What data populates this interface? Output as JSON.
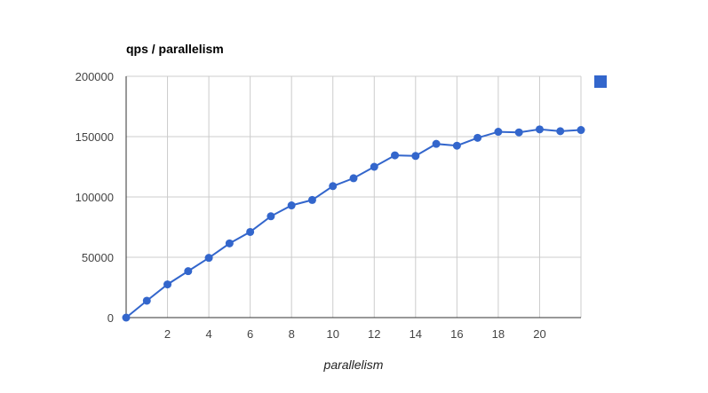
{
  "chart_data": {
    "type": "line",
    "title": "qps / parallelism",
    "xlabel": "parallelism",
    "ylabel": "",
    "x": [
      0,
      1,
      2,
      3,
      4,
      5,
      6,
      7,
      8,
      9,
      10,
      11,
      12,
      13,
      14,
      15,
      16,
      17,
      18,
      19,
      20,
      21,
      22
    ],
    "xlim": [
      0,
      22
    ],
    "ylim": [
      0,
      200000
    ],
    "x_ticks": [
      2,
      4,
      6,
      8,
      10,
      12,
      14,
      16,
      18,
      20
    ],
    "y_ticks": [
      0,
      50000,
      100000,
      150000,
      200000
    ],
    "x_tick_labels": [
      "2",
      "4",
      "6",
      "8",
      "10",
      "12",
      "14",
      "16",
      "18",
      "20"
    ],
    "y_tick_labels": [
      "0",
      "50000",
      "100000",
      "150000",
      "200000"
    ],
    "grid": true,
    "legend_position": "right",
    "series": [
      {
        "color": "#3366cc",
        "values": [
          0,
          14000,
          27500,
          38500,
          49500,
          61500,
          71000,
          84000,
          93000,
          97500,
          109000,
          115500,
          125000,
          134500,
          134000,
          144000,
          142500,
          149000,
          154000,
          153500,
          156000,
          154500,
          155500
        ]
      }
    ]
  }
}
